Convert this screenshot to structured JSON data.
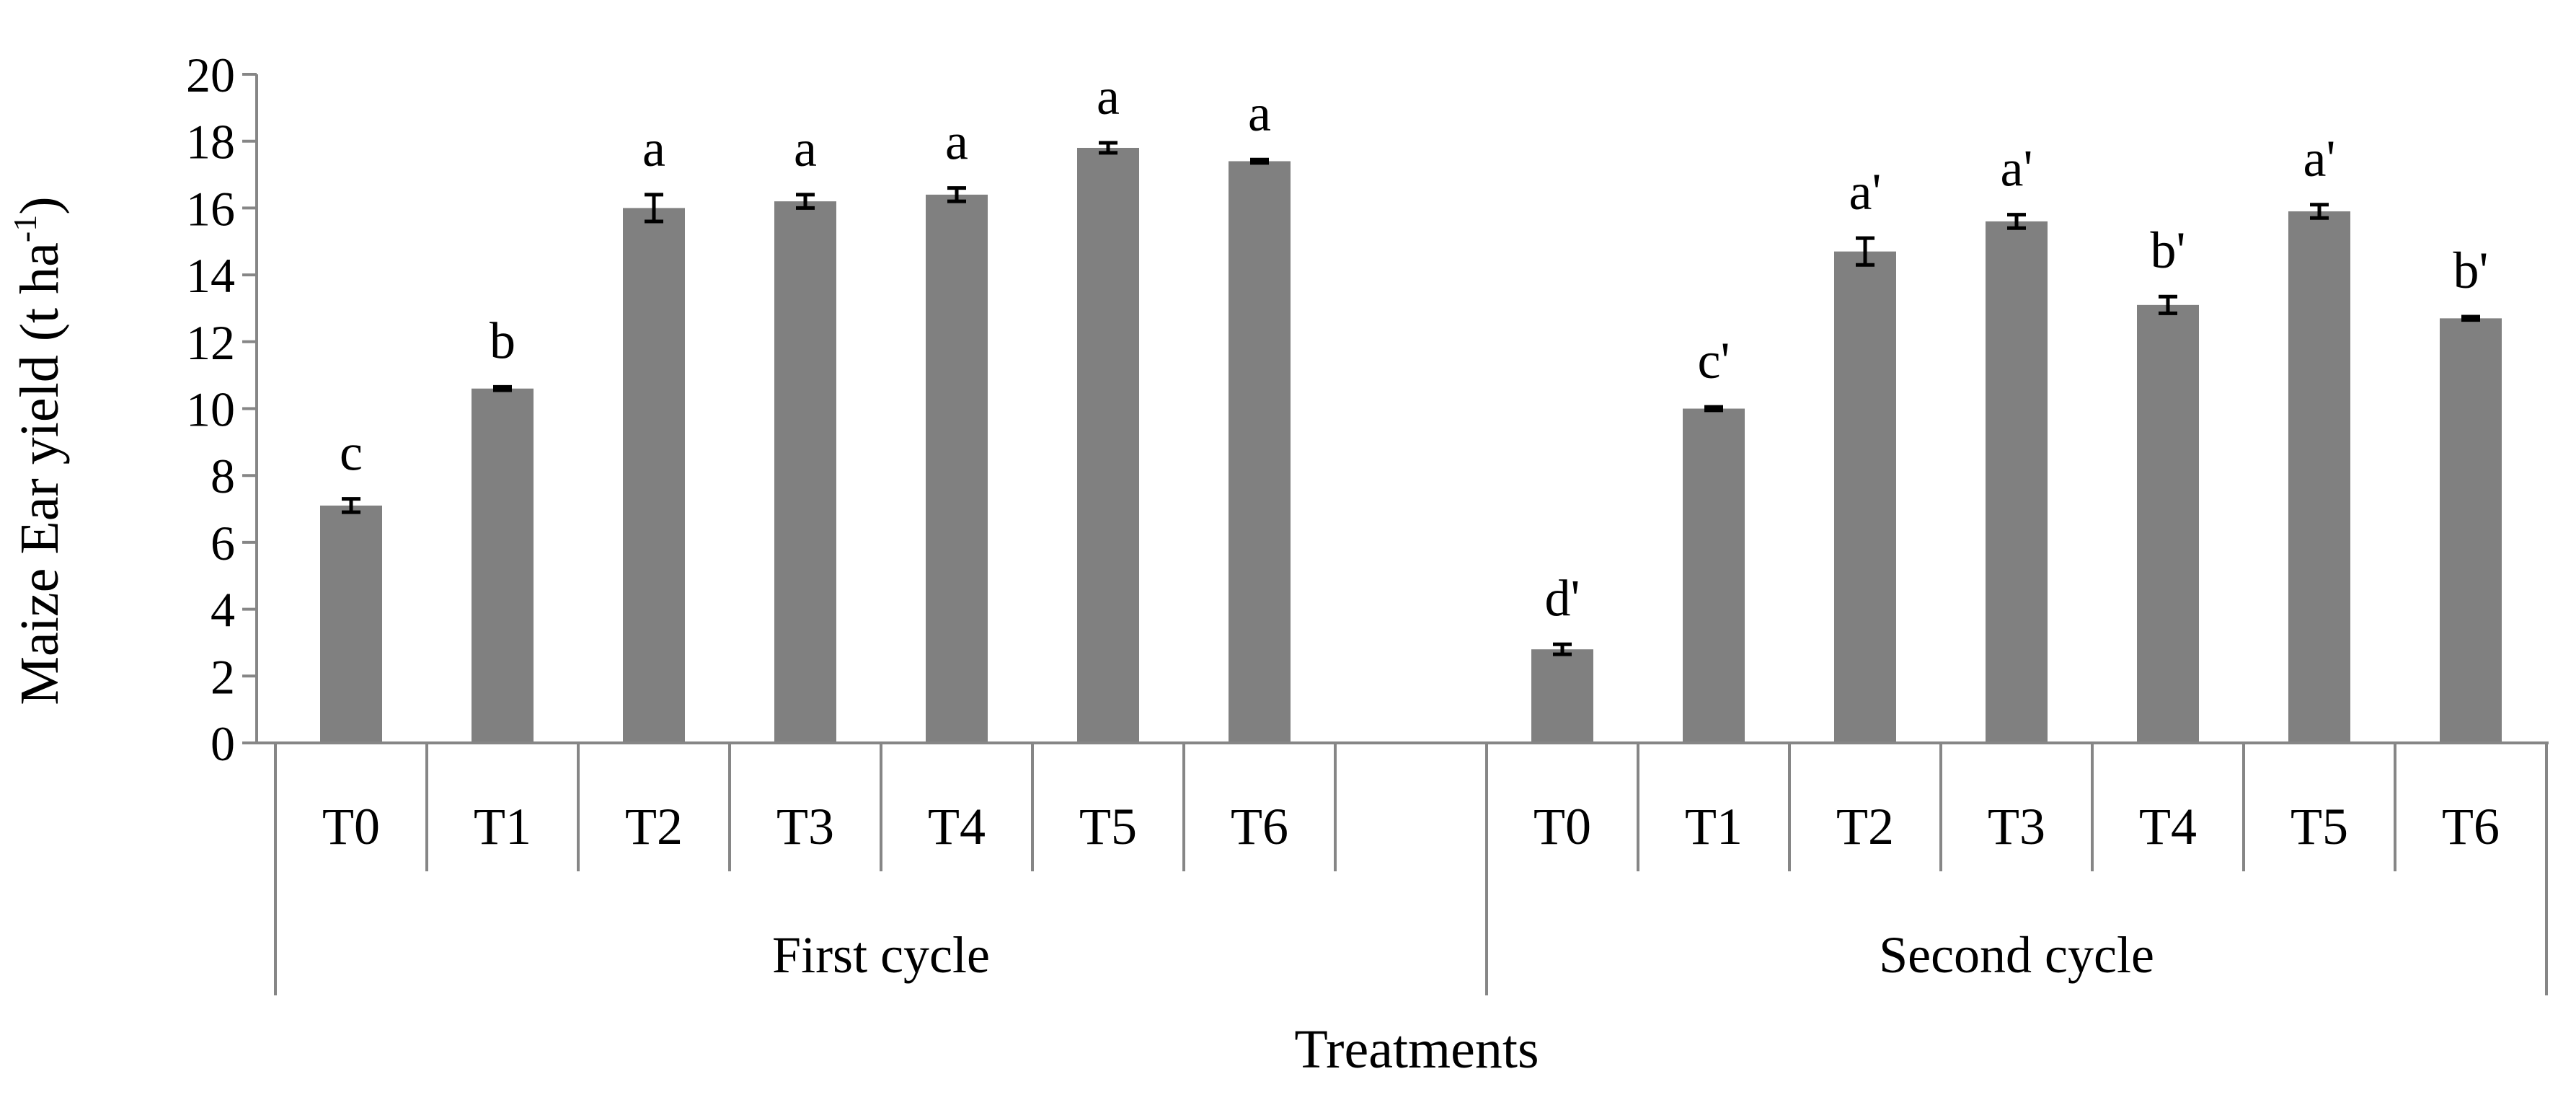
{
  "chart_data": {
    "type": "bar",
    "title": "",
    "ylabel": "Maize Ear yield  (t ha",
    "ylabel_sup": "-1",
    "ylabel_close": ")",
    "xlabel": "Treatments",
    "ylim": [
      0,
      20
    ],
    "yticks": [
      "0",
      "2",
      "4",
      "6",
      "8",
      "10",
      "12",
      "14",
      "16",
      "18",
      "20"
    ],
    "bar_color": "#808080",
    "axis_color": "#868686",
    "groups": [
      {
        "name": "First cycle",
        "categories": [
          "T0",
          "T1",
          "T2",
          "T3",
          "T4",
          "T5",
          "T6"
        ],
        "values": [
          7.1,
          10.6,
          16.0,
          16.2,
          16.4,
          17.8,
          17.4
        ],
        "errors": [
          0.2,
          0.05,
          0.4,
          0.2,
          0.2,
          0.15,
          0.05
        ],
        "letters": [
          "c",
          "b",
          "a",
          "a",
          "a",
          "a",
          "a"
        ]
      },
      {
        "name": "Second cycle",
        "categories": [
          "T0",
          "T1",
          "T2",
          "T3",
          "T4",
          "T5",
          "T6"
        ],
        "values": [
          2.8,
          10.0,
          14.7,
          15.6,
          13.1,
          15.9,
          12.7
        ],
        "errors": [
          0.15,
          0.05,
          0.4,
          0.2,
          0.25,
          0.2,
          0.05
        ],
        "letters": [
          "d'",
          "c'",
          "a'",
          "a'",
          "b'",
          "a'",
          "b'"
        ]
      }
    ]
  }
}
